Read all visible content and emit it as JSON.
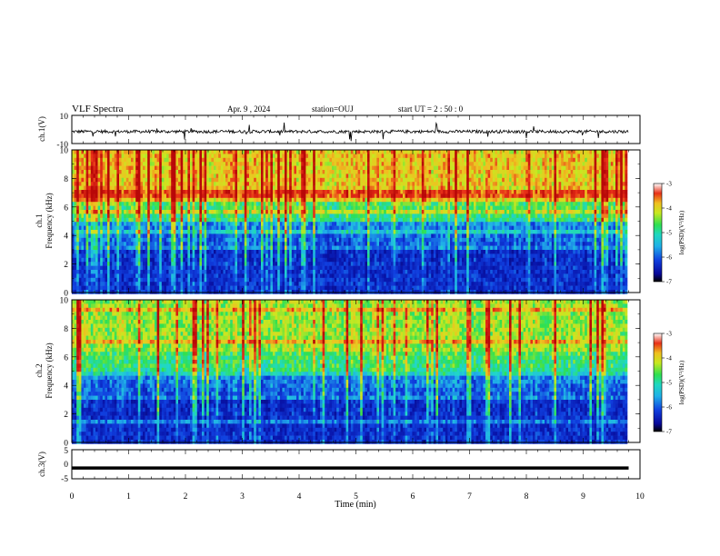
{
  "header": {
    "title": "VLF Spectra",
    "date": "Apr. 9 , 2024",
    "station": "station=OUJ",
    "start": "start UT =  2 : 50 : 0"
  },
  "colors": {
    "scale": [
      "#08089a",
      "#0a3cd0",
      "#1e90e8",
      "#20d8d8",
      "#30e070",
      "#c8e820",
      "#f0c020",
      "#e83018",
      "#b80808"
    ]
  },
  "chart_data": [
    {
      "type": "line",
      "panel": "ch1-waveform",
      "ylabel": "ch.1(V)",
      "ylim": [
        -10,
        10
      ],
      "yticks": [
        "10",
        "-10"
      ],
      "baseline": -1.5,
      "xlim": [
        0,
        10
      ]
    },
    {
      "type": "heatmap",
      "panel": "ch1-spectrogram",
      "ylabel": "ch.1",
      "ylabel2": "Frequency (kHz)",
      "ylim": [
        0,
        10
      ],
      "yticks": [
        "0",
        "2",
        "4",
        "6",
        "8",
        "10"
      ],
      "xlim": [
        0,
        10
      ],
      "data_end_min": 9.8,
      "colorbar": {
        "label": "log(PSD)(V²/Hz)",
        "range": [
          -7,
          -3
        ],
        "ticks": [
          "-3",
          "-4",
          "-5",
          "-6",
          "-7"
        ]
      }
    },
    {
      "type": "heatmap",
      "panel": "ch2-spectrogram",
      "ylabel": "ch.2",
      "ylabel2": "Frequency (kHz)",
      "ylim": [
        0,
        10
      ],
      "yticks": [
        "0",
        "2",
        "4",
        "6",
        "8",
        "10"
      ],
      "xlim": [
        0,
        10
      ],
      "data_end_min": 9.8,
      "colorbar": {
        "label": "log(PSD)(V²/Hz)",
        "range": [
          -7,
          -3
        ],
        "ticks": [
          "-3",
          "-4",
          "-5",
          "-6",
          "-7"
        ]
      }
    },
    {
      "type": "line",
      "panel": "ch3-waveform",
      "ylabel": "ch.3(V)",
      "ylim": [
        -5,
        5
      ],
      "yticks": [
        "5",
        "0",
        "-5"
      ],
      "value": -1.3,
      "xlim": [
        0,
        10
      ]
    }
  ],
  "xaxis": {
    "label": "Time (min)",
    "ticks": [
      "0",
      "1",
      "2",
      "3",
      "4",
      "5",
      "6",
      "7",
      "8",
      "9",
      "10"
    ]
  }
}
